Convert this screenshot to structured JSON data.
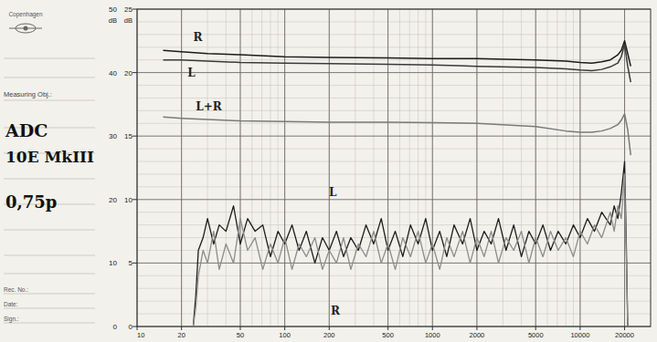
{
  "sheet": {
    "brand": "Copenhagen",
    "measuring_obj_label": "Measuring Obj.:",
    "notes": [
      "ADC",
      "10E MkIII",
      "0,75p"
    ],
    "rec_no_label": "Rec. No.:",
    "date_label": "Date:",
    "sign_label": "Sign.:"
  },
  "chart_data": {
    "type": "line",
    "y_label": "dB",
    "y2_label": "dB",
    "log": "x",
    "grid": true,
    "xlim": [
      10,
      30000
    ],
    "xticks": [
      10,
      20,
      50,
      100,
      200,
      500,
      1000,
      2000,
      5000,
      10000,
      20000
    ],
    "ylim": [
      0,
      50
    ],
    "yticks": [
      0,
      10,
      20,
      30,
      40,
      50
    ],
    "y2lim": [
      0,
      25
    ],
    "y2ticks": [
      0,
      5,
      10,
      15,
      20,
      25
    ],
    "series": [
      {
        "name": "R",
        "color": "#1c1c1c",
        "label_at": [
          24,
          45
        ],
        "x": [
          15,
          20,
          30,
          50,
          100,
          200,
          500,
          1000,
          2000,
          5000,
          8000,
          10000,
          12000,
          14000,
          16000,
          18000,
          19000,
          20000,
          21000,
          22000
        ],
        "values": [
          43.5,
          43.3,
          43.0,
          42.8,
          42.5,
          42.4,
          42.3,
          42.2,
          42.2,
          42.0,
          41.8,
          41.6,
          41.5,
          41.7,
          42.0,
          42.8,
          43.5,
          45.0,
          43.0,
          41.0
        ]
      },
      {
        "name": "L",
        "color": "#3a3a3a",
        "label_at": [
          22,
          39.3
        ],
        "x": [
          15,
          20,
          30,
          50,
          100,
          200,
          500,
          1000,
          2000,
          5000,
          8000,
          10000,
          12000,
          14000,
          16000,
          18000,
          19000,
          20000,
          21000,
          22000
        ],
        "values": [
          42.0,
          42.0,
          41.8,
          41.6,
          41.5,
          41.4,
          41.3,
          41.2,
          41.0,
          40.8,
          40.6,
          40.4,
          40.3,
          40.5,
          40.9,
          41.5,
          42.5,
          44.5,
          41.0,
          38.5
        ]
      },
      {
        "name": "L+R",
        "color": "#7a7a7a",
        "label_at": [
          25,
          34
        ],
        "x": [
          15,
          20,
          30,
          50,
          100,
          200,
          500,
          1000,
          2000,
          5000,
          8000,
          10000,
          12000,
          14000,
          16000,
          18000,
          19000,
          20000,
          21000,
          22000
        ],
        "values": [
          33.0,
          32.8,
          32.6,
          32.4,
          32.3,
          32.2,
          32.2,
          32.1,
          32.0,
          31.5,
          30.8,
          30.6,
          30.6,
          30.8,
          31.2,
          31.8,
          32.5,
          33.5,
          31.0,
          27.0
        ]
      },
      {
        "name": "L",
        "color": "#1c1c1c",
        "label_at": [
          199,
          20.5
        ],
        "x": [
          24,
          25,
          26,
          28,
          30,
          33,
          36,
          40,
          45,
          50,
          56,
          63,
          71,
          80,
          90,
          100,
          112,
          125,
          140,
          160,
          180,
          200,
          224,
          250,
          280,
          315,
          355,
          400,
          450,
          500,
          560,
          630,
          710,
          800,
          900,
          1000,
          1120,
          1250,
          1400,
          1600,
          1800,
          2000,
          2240,
          2500,
          2800,
          3150,
          3550,
          4000,
          4500,
          5000,
          5600,
          6300,
          7100,
          8000,
          9000,
          10000,
          11200,
          12500,
          14000,
          16000,
          17000,
          18000,
          19000,
          20000,
          20500,
          21000
        ],
        "values": [
          0,
          5,
          12,
          14,
          17,
          13,
          16,
          15,
          19,
          13,
          17,
          15,
          16,
          11,
          15,
          13,
          16,
          12,
          15,
          10,
          14,
          12,
          15,
          11,
          14,
          12,
          16,
          13,
          17,
          12,
          15,
          11,
          16,
          13,
          17,
          12,
          15,
          11,
          16,
          13,
          17,
          12,
          15,
          13,
          17,
          12,
          16,
          11,
          15,
          13,
          16,
          12,
          15,
          13,
          16,
          14,
          17,
          15,
          18,
          16,
          19,
          17,
          21,
          26,
          14,
          0
        ]
      },
      {
        "name": "R",
        "color": "#8c8c8c",
        "label_at": [
          205,
          1.9
        ],
        "x": [
          24,
          25,
          26,
          28,
          30,
          33,
          36,
          40,
          45,
          50,
          56,
          63,
          71,
          80,
          90,
          100,
          112,
          125,
          140,
          160,
          180,
          200,
          224,
          250,
          280,
          315,
          355,
          400,
          450,
          500,
          560,
          630,
          710,
          800,
          900,
          1000,
          1120,
          1250,
          1400,
          1600,
          1800,
          2000,
          2240,
          2500,
          2800,
          3150,
          3550,
          4000,
          4500,
          5000,
          5600,
          6300,
          7100,
          8000,
          9000,
          10000,
          11200,
          12500,
          14000,
          16000,
          17000,
          18000,
          19000,
          20000,
          20500,
          21000
        ],
        "values": [
          0,
          3,
          8,
          12,
          10,
          15,
          9,
          13,
          10,
          17,
          12,
          14,
          9,
          13,
          10,
          14,
          9,
          13,
          11,
          14,
          9,
          12,
          10,
          14,
          9,
          13,
          11,
          15,
          10,
          13,
          9,
          14,
          11,
          15,
          10,
          13,
          9,
          14,
          11,
          15,
          10,
          14,
          11,
          15,
          10,
          14,
          12,
          15,
          10,
          14,
          11,
          15,
          12,
          14,
          11,
          15,
          13,
          16,
          14,
          18,
          15,
          19,
          17,
          24,
          12,
          0
        ]
      }
    ]
  }
}
